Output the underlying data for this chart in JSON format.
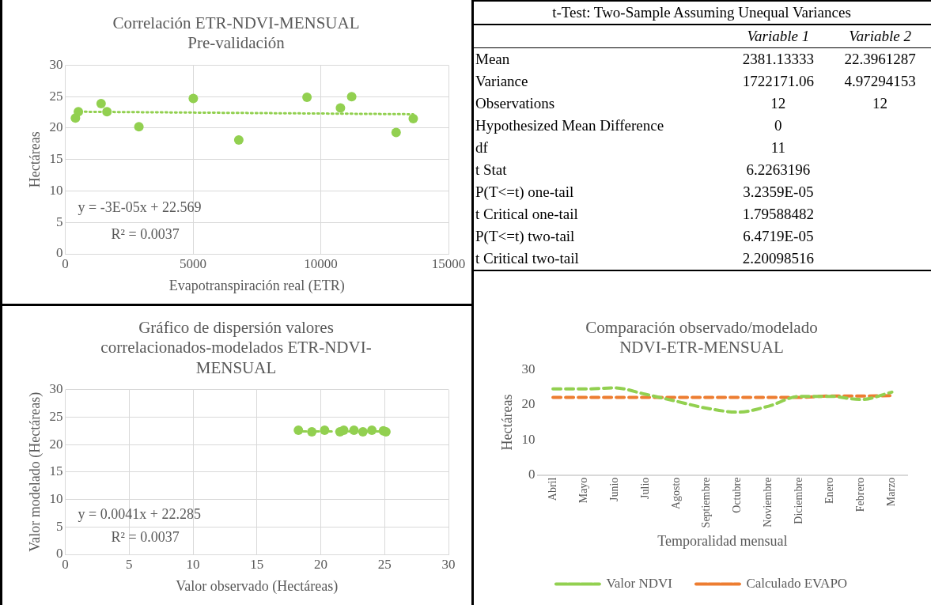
{
  "chart_data": [
    {
      "type": "scatter",
      "title": "Correlación ETR-NDVI-MENSUAL\nPre-validación",
      "xlabel": "Evapotranspiración real (ETR)",
      "ylabel": "Hectáreas",
      "xlim": [
        0,
        15000
      ],
      "xticks": [
        0,
        5000,
        10000,
        15000
      ],
      "ylim": [
        0,
        30
      ],
      "yticks": [
        0,
        5,
        10,
        15,
        20,
        25,
        30
      ],
      "grid": true,
      "marker": "circle",
      "legend": false,
      "series": [
        {
          "color": "#92d050",
          "x": [
            395,
            510,
            1400,
            1630,
            2880,
            5010,
            6790,
            9460,
            10770,
            11210,
            12950,
            13620
          ],
          "values": [
            21.6,
            22.6,
            23.9,
            22.6,
            20.2,
            24.7,
            18.1,
            24.9,
            23.2,
            25.0,
            19.3,
            21.5
          ]
        },
        {
          "type": "line",
          "color": "#92d050",
          "line_style": "dotted",
          "marker": "none",
          "x": [
            395,
            13620
          ],
          "values": [
            22.6,
            22.2
          ]
        }
      ],
      "annotations": [
        "y = -3E-05x + 22.569",
        "R² = 0.0037"
      ]
    },
    {
      "type": "other",
      "title": "t-Test: Two-Sample Assuming Unequal Variances",
      "categories": [
        null,
        "Variable 1",
        "Variable 2"
      ],
      "y_categories": [
        "Mean",
        "Variance",
        "Observations",
        "Hypothesized Mean Difference",
        "df",
        "t Stat",
        "P(T<=t) one-tail",
        "t Critical one-tail",
        "P(T<=t) two-tail",
        "t Critical two-tail"
      ],
      "cell_labels": [
        [
          "2381.13333",
          "22.3961287"
        ],
        [
          "1722171.06",
          "4.97294153"
        ],
        [
          "12",
          "12"
        ],
        [
          "0",
          null
        ],
        [
          "11",
          null
        ],
        [
          "6.2263196",
          null
        ],
        [
          "3.2359E-05",
          null
        ],
        [
          "1.79588482",
          null
        ],
        [
          "6.4719E-05",
          null
        ],
        [
          "2.20098516",
          null
        ]
      ]
    },
    {
      "type": "scatter",
      "title": "Gráfico de dispersión valores\ncorrelacionados-modelados ETR-NDVI-\nMENSUAL",
      "xlabel": "Valor observado (Hectáreas)",
      "ylabel": "Valor modelado (Hectáreas)",
      "xlim": [
        0,
        30
      ],
      "xticks": [
        0,
        5,
        10,
        15,
        20,
        25,
        30
      ],
      "ylim": [
        0,
        30
      ],
      "yticks": [
        0,
        5,
        10,
        15,
        20,
        25,
        30
      ],
      "grid": true,
      "marker": "circle",
      "legend": false,
      "series": [
        {
          "color": "#92d050",
          "x": [
            18.25,
            19.3,
            20.3,
            21.5,
            21.8,
            22.6,
            23.3,
            24.0,
            24.9,
            25.1
          ],
          "values": [
            22.6,
            22.3,
            22.6,
            22.3,
            22.6,
            22.6,
            22.3,
            22.6,
            22.5,
            22.3
          ]
        },
        {
          "type": "line",
          "color": "#92d050",
          "line_style": "dashed",
          "marker": "none",
          "x": [
            18.25,
            25.1
          ],
          "values": [
            22.4,
            22.4
          ]
        }
      ],
      "annotations": [
        "y = 0.0041x + 22.285",
        "R² = 0.0037"
      ]
    },
    {
      "type": "line",
      "title": "Comparación observado/modelado\nNDVI-ETR-MENSUAL",
      "xlabel": "Temporalidad mensual",
      "ylabel": "Hectáreas",
      "categories": [
        "Abril",
        "Mayo",
        "Junio",
        "Julio",
        "Agosto",
        "Septiembre",
        "Octubre",
        "Noviembre",
        "Diciembre",
        "Enero",
        "Febrero",
        "Marzo"
      ],
      "ylim": [
        0,
        30
      ],
      "yticks": [
        0,
        10,
        20,
        30
      ],
      "grid": false,
      "legend": "bottom",
      "marker": "none",
      "line_style": "dashed",
      "series": [
        {
          "name": "Valor NDVI",
          "color": "#92d050",
          "values": [
            24.5,
            24.5,
            24.8,
            23.0,
            21.0,
            19.0,
            17.9,
            19.6,
            22.4,
            22.4,
            21.5,
            23.6
          ]
        },
        {
          "name": "Calculado EVAPO",
          "color": "#ed7d31",
          "values": [
            22.1,
            22.1,
            22.1,
            22.1,
            22.1,
            22.1,
            22.1,
            22.1,
            22.1,
            22.5,
            22.5,
            22.6
          ]
        }
      ]
    }
  ]
}
